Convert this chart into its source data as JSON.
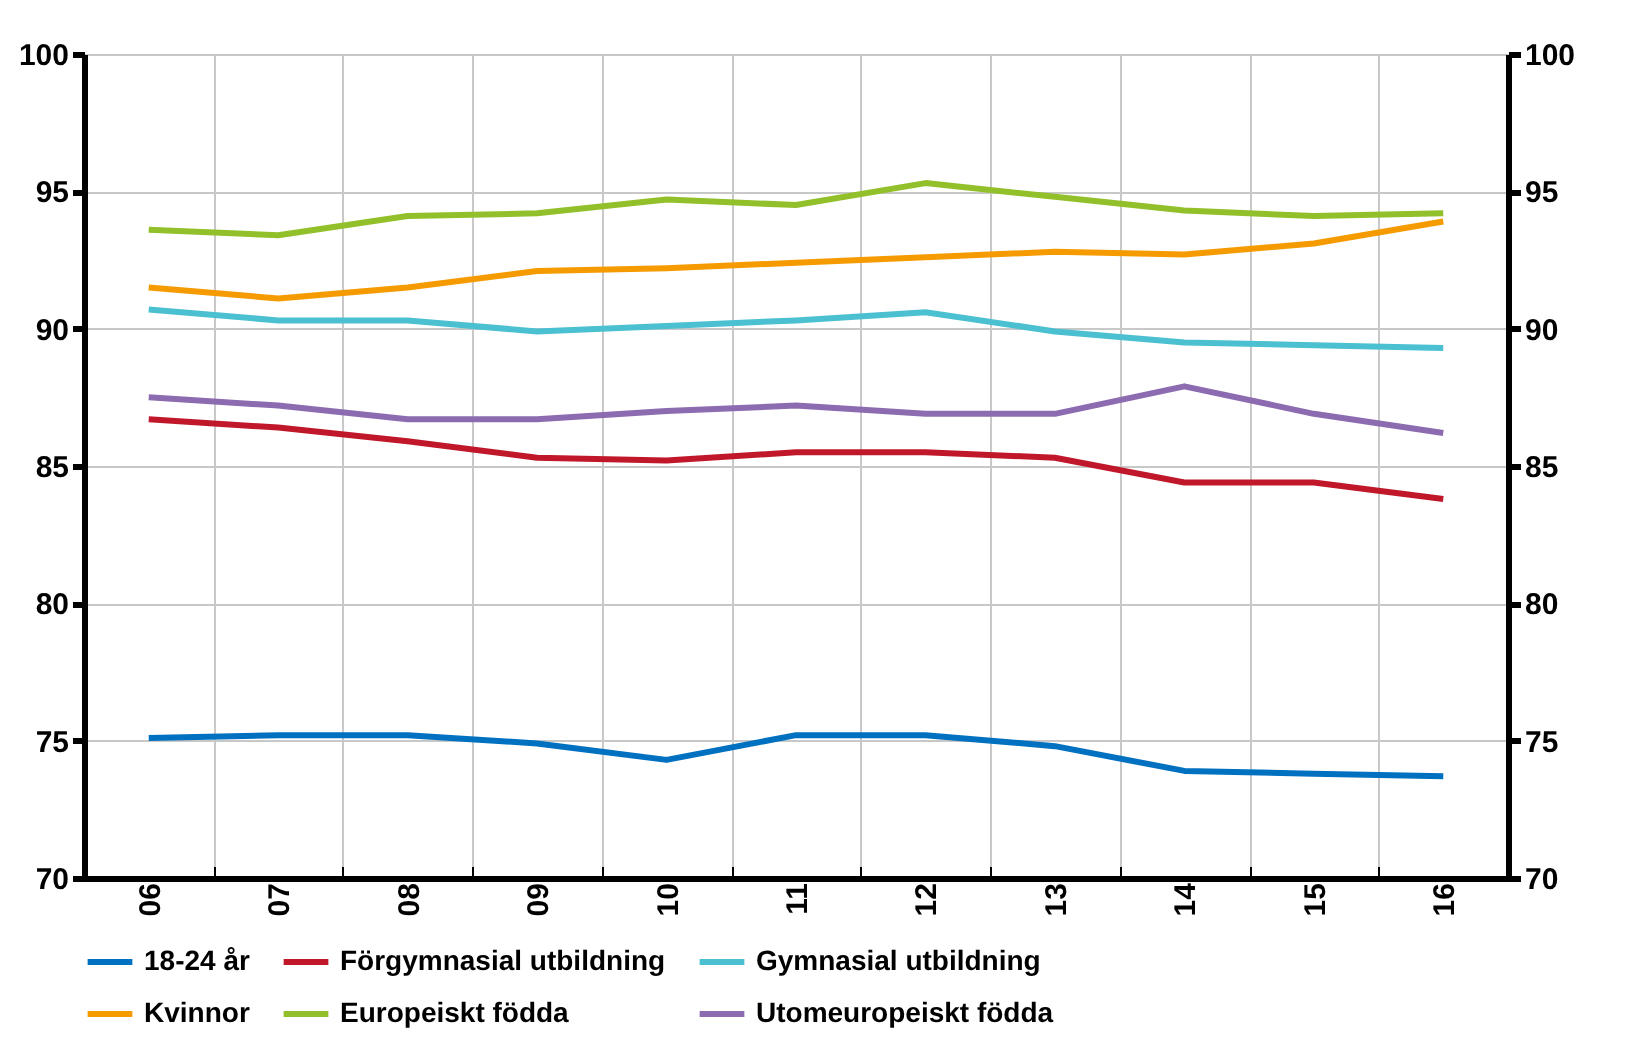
{
  "chart_data": {
    "type": "line",
    "categories": [
      "06",
      "07",
      "08",
      "09",
      "10",
      "11",
      "12",
      "13",
      "14",
      "15",
      "16"
    ],
    "series": [
      {
        "name": "18-24 år",
        "color": "#0070c0",
        "values": [
          75.1,
          75.2,
          75.2,
          74.9,
          74.3,
          75.2,
          75.2,
          74.8,
          73.9,
          73.8,
          73.7
        ]
      },
      {
        "name": "Förgymnasial utbildning",
        "color": "#c0182a",
        "values": [
          86.7,
          86.4,
          85.9,
          85.3,
          85.2,
          85.5,
          85.5,
          85.3,
          84.4,
          84.4,
          83.8
        ]
      },
      {
        "name": "Gymnasial utbildning",
        "color": "#4bc0d0",
        "values": [
          90.7,
          90.3,
          90.3,
          89.9,
          90.1,
          90.3,
          90.6,
          89.9,
          89.5,
          89.4,
          89.3
        ]
      },
      {
        "name": "Kvinnor",
        "color": "#f59b00",
        "values": [
          91.5,
          91.1,
          91.5,
          92.1,
          92.2,
          92.4,
          92.6,
          92.8,
          92.7,
          93.1,
          93.9
        ]
      },
      {
        "name": "Europeiskt födda",
        "color": "#92c02a",
        "values": [
          93.6,
          93.4,
          94.1,
          94.2,
          94.7,
          94.5,
          95.3,
          94.8,
          94.3,
          94.1,
          94.2
        ]
      },
      {
        "name": "Utomeuropeiskt födda",
        "color": "#8c6bb1",
        "values": [
          87.5,
          87.2,
          86.7,
          86.7,
          87.0,
          87.2,
          86.9,
          86.9,
          87.9,
          86.9,
          86.2
        ]
      }
    ],
    "ylim": [
      70,
      100
    ],
    "yticks": [
      70,
      75,
      80,
      85,
      90,
      95,
      100
    ],
    "y2lim": [
      70,
      100
    ],
    "y2ticks": [
      70,
      75,
      80,
      85,
      90,
      95,
      100
    ],
    "grid": true,
    "legend": "bottom"
  }
}
